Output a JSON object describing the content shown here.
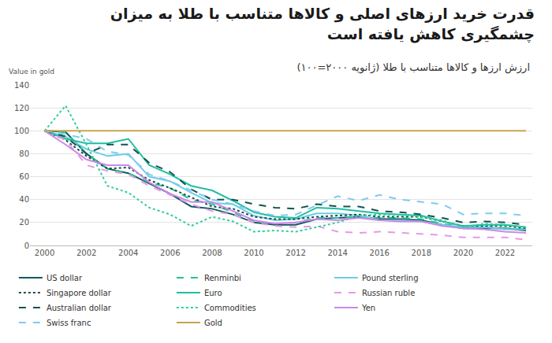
{
  "chart_data": {
    "type": "line",
    "title": "قدرت خرید ارزهای اصلی و کالاها متناسب با طلا به میزان چشمگیری کاهش یافته است",
    "subtitle": "ارزش ارزها و کالاها متناسب با طلا (ژانویه ۲۰۰۰=۱۰۰)",
    "y_label": "Value in gold",
    "x": [
      2000,
      2001,
      2002,
      2003,
      2004,
      2005,
      2006,
      2007,
      2008,
      2009,
      2010,
      2011,
      2012,
      2013,
      2014,
      2015,
      2016,
      2017,
      2018,
      2019,
      2020,
      2021,
      2022,
      2023
    ],
    "series": [
      {
        "name": "US dollar",
        "color": "#0f5a5e",
        "line_style": "solid",
        "values": [
          100,
          99,
          80,
          67,
          63,
          54,
          45,
          34,
          32,
          27,
          20,
          18,
          18,
          23,
          24,
          25,
          23,
          23,
          22,
          18,
          15,
          15,
          15,
          13
        ]
      },
      {
        "name": "Renminbi",
        "color": "#22c38e",
        "line_style": "dashed",
        "values": [
          100,
          99,
          80,
          67,
          63,
          55,
          50,
          40,
          36,
          29,
          21,
          19,
          20,
          24,
          24,
          25,
          24,
          24,
          23,
          19,
          16,
          16,
          15,
          14
        ]
      },
      {
        "name": "Pound sterling",
        "color": "#6ccbe8",
        "line_style": "solid",
        "values": [
          100,
          95,
          84,
          78,
          80,
          60,
          56,
          46,
          37,
          36,
          26,
          22,
          23,
          28,
          28,
          26,
          22,
          22,
          21,
          18,
          16,
          16,
          14,
          14
        ]
      },
      {
        "name": "Singapore dollar",
        "color": "#1a4d4a",
        "line_style": "dotted",
        "values": [
          100,
          92,
          78,
          67,
          68,
          57,
          50,
          42,
          34,
          32,
          25,
          23,
          23,
          25,
          26,
          27,
          25,
          25,
          25,
          21,
          17,
          17,
          17,
          15
        ]
      },
      {
        "name": "Euro",
        "color": "#1dbf9f",
        "line_style": "solid",
        "values": [
          100,
          93,
          89,
          89,
          93,
          70,
          62,
          52,
          48,
          39,
          29,
          25,
          24,
          33,
          32,
          30,
          28,
          27,
          26,
          21,
          17,
          18,
          18,
          16
        ]
      },
      {
        "name": "Russian ruble",
        "color": "#e699e6",
        "line_style": "dashed",
        "values": [
          100,
          92,
          70,
          65,
          62,
          52,
          44,
          36,
          30,
          27,
          20,
          17,
          16,
          17,
          12,
          11,
          12,
          11,
          10,
          9,
          7,
          7,
          7,
          5
        ]
      },
      {
        "name": "Australian dollar",
        "color": "#14524f",
        "line_style": "dashed",
        "values": [
          100,
          95,
          80,
          88,
          88,
          72,
          64,
          49,
          40,
          40,
          36,
          33,
          32,
          36,
          34,
          34,
          30,
          29,
          27,
          24,
          20,
          21,
          20,
          18
        ]
      },
      {
        "name": "Commodities",
        "color": "#2fcf98",
        "line_style": "dotted",
        "values": [
          100,
          122,
          88,
          52,
          46,
          33,
          27,
          17,
          25,
          21,
          12,
          13,
          12,
          16,
          20,
          26,
          27,
          27,
          25,
          22,
          16,
          19,
          18,
          16
        ]
      },
      {
        "name": "Yen",
        "color": "#cc88e8",
        "line_style": "solid",
        "values": [
          100,
          88,
          75,
          70,
          70,
          55,
          45,
          38,
          38,
          30,
          22,
          19,
          20,
          23,
          22,
          24,
          22,
          21,
          21,
          17,
          15,
          14,
          12,
          11
        ]
      },
      {
        "name": "Swiss franc",
        "color": "#7ecbf0",
        "line_style": "dashed",
        "values": [
          100,
          97,
          93,
          82,
          79,
          62,
          56,
          48,
          40,
          36,
          30,
          26,
          27,
          35,
          43,
          39,
          44,
          40,
          38,
          36,
          27,
          28,
          28,
          26
        ]
      },
      {
        "name": "Gold",
        "color": "#c9a44c",
        "line_style": "solid",
        "values": [
          100,
          100,
          100,
          100,
          100,
          100,
          100,
          100,
          100,
          100,
          100,
          100,
          100,
          100,
          100,
          100,
          100,
          100,
          100,
          100,
          100,
          100,
          100,
          100
        ]
      }
    ],
    "xlim": [
      1999.3,
      2023.3
    ],
    "xticks": [
      2000,
      2002,
      2004,
      2006,
      2008,
      2010,
      2012,
      2014,
      2016,
      2018,
      2020,
      2022
    ],
    "ylim": [
      0,
      140
    ],
    "yticks": [
      0,
      20,
      40,
      60,
      80,
      100,
      120,
      140
    ],
    "grid": true,
    "legend": "bottom"
  }
}
